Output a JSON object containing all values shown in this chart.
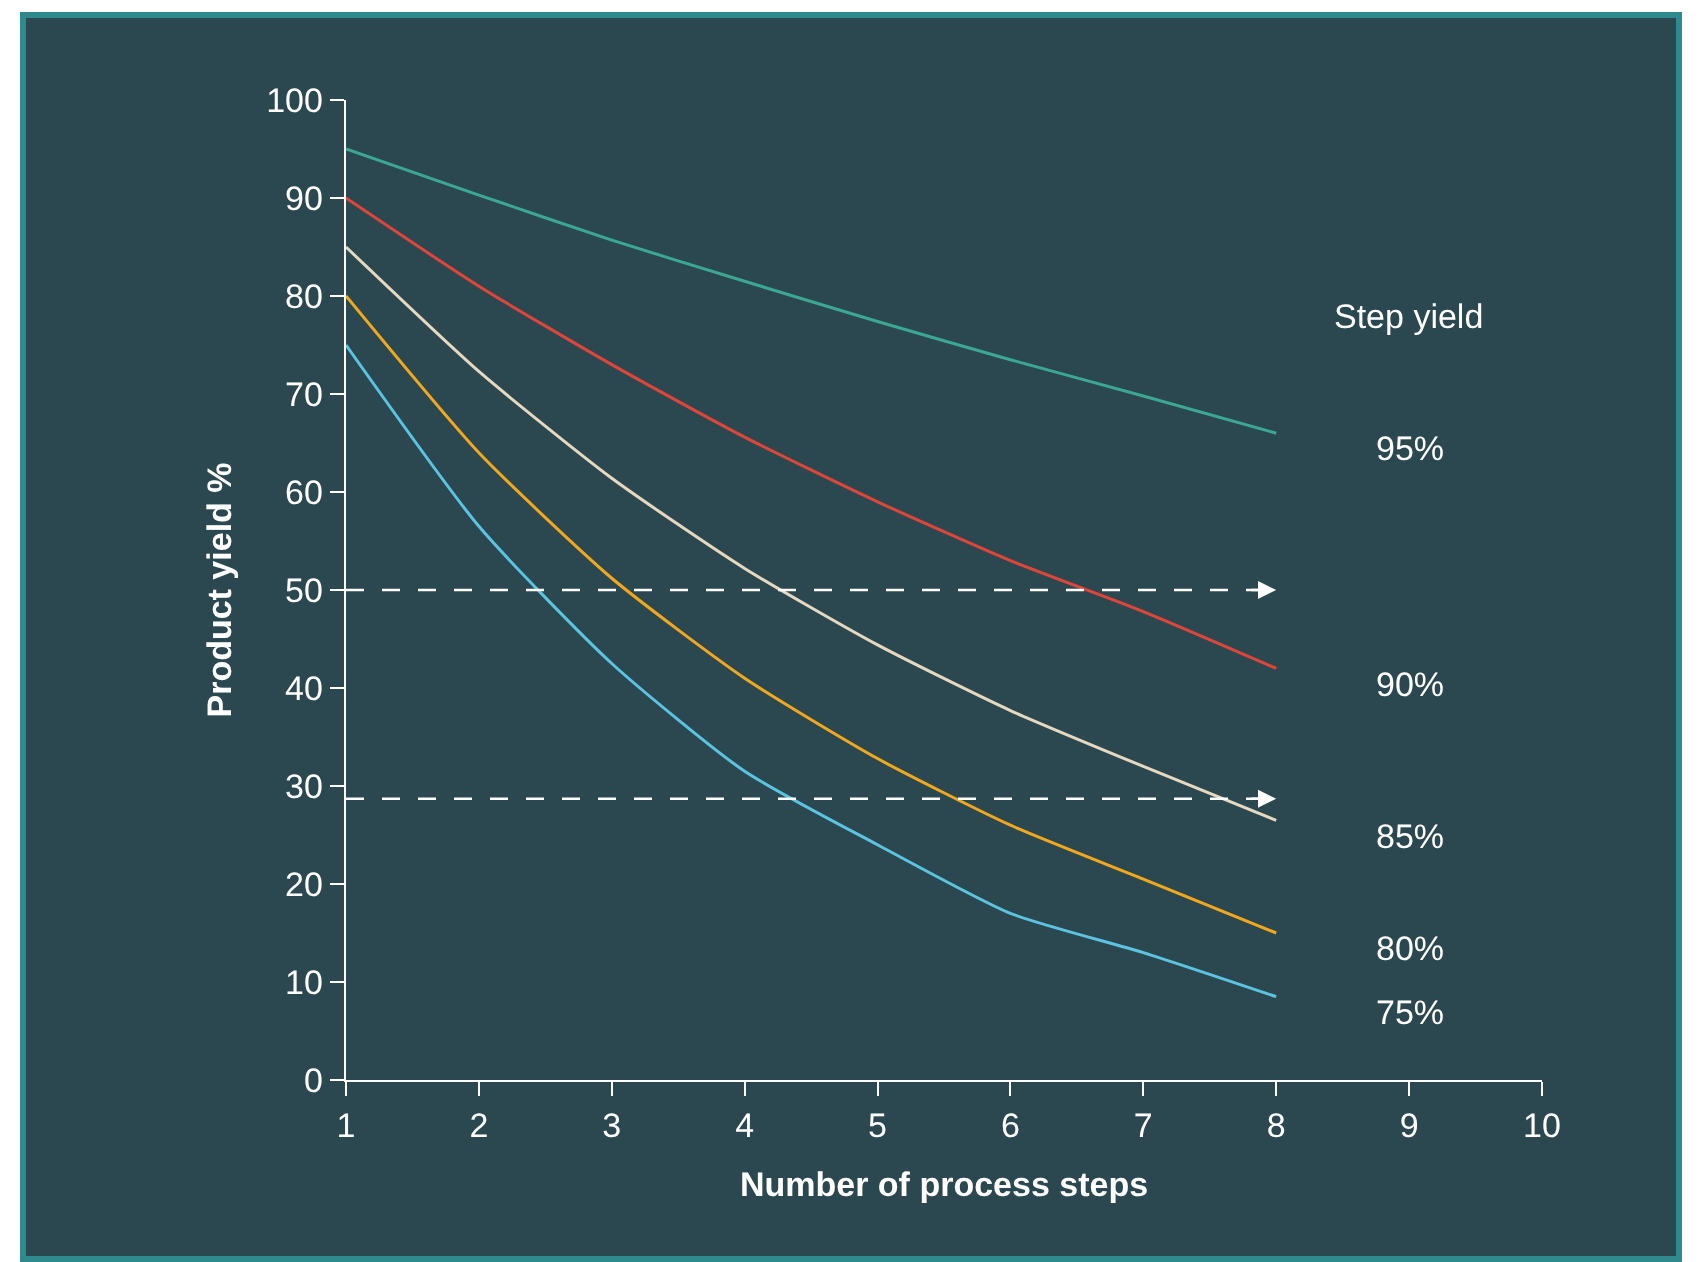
{
  "chart_data": {
    "type": "line",
    "xlabel": "Number of process steps",
    "ylabel": "Product yield %",
    "legend_title": "Step yield",
    "x": [
      1,
      2,
      3,
      4,
      5,
      6,
      7,
      8
    ],
    "series": [
      {
        "name": "95%",
        "color": "#3aa892",
        "values": [
          95,
          90.3,
          85.7,
          81.5,
          77.4,
          73.5,
          69.8,
          66
        ]
      },
      {
        "name": "90%",
        "color": "#e0453a",
        "values": [
          90,
          81,
          73,
          65.6,
          59,
          53,
          47.8,
          42
        ]
      },
      {
        "name": "85%",
        "color": "#e6d9c0",
        "values": [
          85,
          72.3,
          61.4,
          52.2,
          44.4,
          37.7,
          32,
          26.5
        ]
      },
      {
        "name": "80%",
        "color": "#f2a81d",
        "values": [
          80,
          64,
          51.2,
          41,
          32.8,
          26,
          20.5,
          15
        ]
      },
      {
        "name": "75%",
        "color": "#5bc4e0",
        "values": [
          75,
          56.5,
          42.5,
          31.5,
          24,
          17,
          13,
          8.5
        ]
      }
    ],
    "ref_lines": [
      {
        "axis": "y",
        "value": 50,
        "color": "#ffffff",
        "line_style": "dashed"
      },
      {
        "axis": "y",
        "value": 28.7,
        "color": "#ffffff",
        "line_style": "dashed"
      }
    ],
    "xlim": [
      1,
      10
    ],
    "xticks": [
      1,
      2,
      3,
      4,
      5,
      6,
      7,
      8,
      9,
      10
    ],
    "ylim": [
      0,
      100
    ],
    "yticks": [
      0,
      10,
      20,
      30,
      40,
      50,
      60,
      70,
      80,
      90,
      100
    ],
    "grid": false,
    "legend": false
  }
}
